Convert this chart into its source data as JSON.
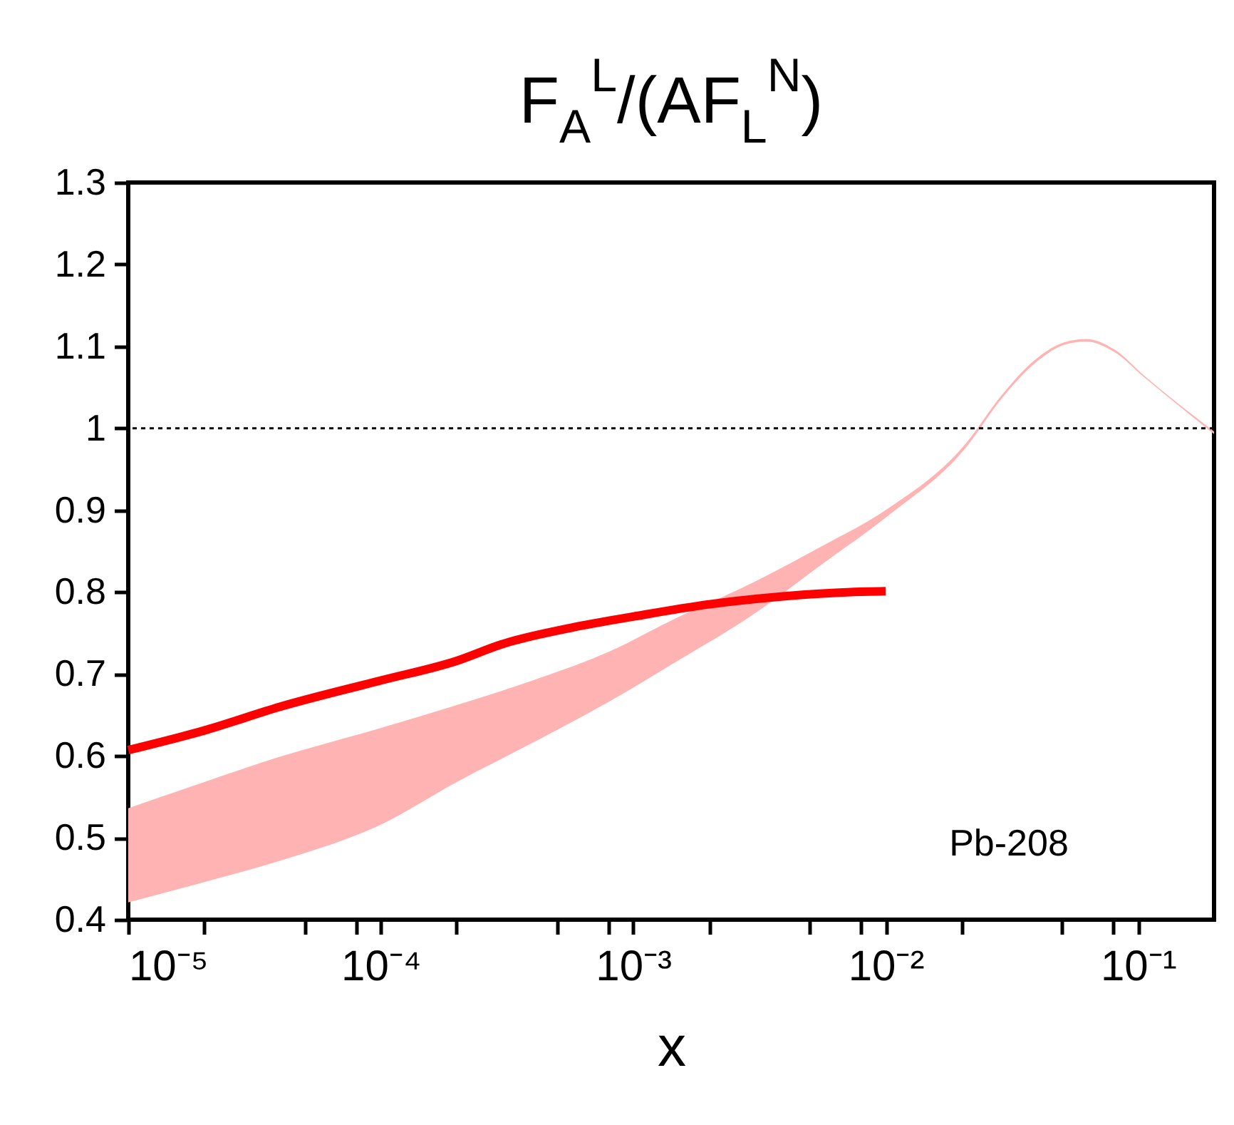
{
  "chart_data": {
    "type": "line",
    "title": "F$_{A}$$^{L}$/(AF$_{L}$$^{N}$)",
    "xlabel": "x",
    "log": "x",
    "grid": false,
    "xlim": [
      1e-05,
      0.2
    ],
    "xticks": [
      {
        "value": 1e-05,
        "label": "10⁻⁵"
      },
      {
        "value": 2e-05,
        "label": null
      },
      {
        "value": 5e-05,
        "label": null
      },
      {
        "value": 8e-05,
        "label": null
      },
      {
        "value": 0.0001,
        "label": "10⁻⁴"
      },
      {
        "value": 0.0002,
        "label": null
      },
      {
        "value": 0.0005,
        "label": null
      },
      {
        "value": 0.0008,
        "label": null
      },
      {
        "value": 0.001,
        "label": "10⁻³"
      },
      {
        "value": 0.002,
        "label": null
      },
      {
        "value": 0.005,
        "label": null
      },
      {
        "value": 0.008,
        "label": null
      },
      {
        "value": 0.01,
        "label": "10⁻²"
      },
      {
        "value": 0.02,
        "label": null
      },
      {
        "value": 0.05,
        "label": null
      },
      {
        "value": 0.08,
        "label": null
      },
      {
        "value": 0.1,
        "label": "10⁻¹"
      }
    ],
    "ylim": [
      0.4,
      1.3
    ],
    "yticks": [
      0.4,
      0.5,
      0.6,
      0.7,
      0.8,
      0.9,
      1,
      1.1,
      1.2,
      1.3
    ],
    "series": [
      {
        "type": "area",
        "color": "#ffb3b3",
        "x": [
          1e-05,
          2e-05,
          4e-05,
          0.0001,
          0.0002,
          0.0004,
          0.0008,
          0.0015,
          0.003,
          0.0056,
          0.01,
          0.021,
          0.0286,
          0.0396,
          0.0512,
          0.0622,
          0.0807,
          0.105,
          0.2
        ],
        "values": [
          null,
          null,
          null,
          null,
          null,
          null,
          null,
          null,
          null,
          null,
          null,
          null,
          null,
          null,
          null,
          null,
          null,
          null,
          null
        ],
        "lower": [
          0.421,
          0.446,
          0.472,
          0.516,
          0.568,
          0.616,
          0.666,
          0.716,
          0.773,
          0.834,
          0.891,
          0.978,
          1.035,
          1.081,
          1.102,
          1.106,
          1.093,
          1.063,
          0.993
        ],
        "upper": [
          0.536,
          0.568,
          0.599,
          0.634,
          0.662,
          0.692,
          0.727,
          0.769,
          0.812,
          0.856,
          0.9,
          0.983,
          1.039,
          1.085,
          1.105,
          1.109,
          1.096,
          1.065,
          0.996
        ]
      },
      {
        "type": "line",
        "color": "#ff0000",
        "x": [
          1e-05,
          2e-05,
          4e-05,
          0.0001,
          0.0002,
          0.0003,
          0.00058,
          0.001,
          0.002,
          0.004,
          0.0073,
          0.01
        ],
        "values": [
          0.607,
          0.631,
          0.66,
          0.692,
          0.716,
          0.736,
          0.757,
          0.77,
          0.785,
          0.795,
          0.8,
          0.801
        ]
      }
    ],
    "ref_lines": [
      {
        "axis": "y",
        "value": 1,
        "color": "#000000",
        "line_style": "dotted"
      }
    ],
    "annotations": [
      "Pb-208"
    ]
  }
}
